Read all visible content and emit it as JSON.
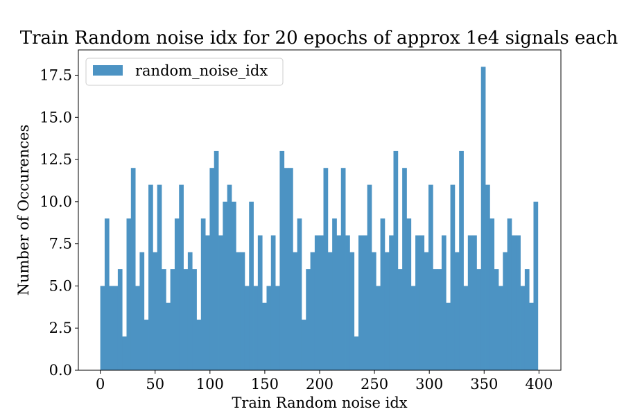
{
  "chart_data": {
    "type": "bar",
    "title": "Train Random noise idx for 20 epochs of approx 1e4 signals each",
    "xlabel": "Train Random noise idx",
    "ylabel": "Number of Occurences",
    "xlim": [
      -20,
      420
    ],
    "ylim": [
      0,
      19
    ],
    "grid": false,
    "legend_position": "top-left",
    "bar_color": "#4c93c3",
    "xticks": [
      0,
      50,
      100,
      150,
      200,
      250,
      300,
      350,
      400
    ],
    "xtick_labels": [
      "0",
      "50",
      "100",
      "150",
      "200",
      "250",
      "300",
      "350",
      "400"
    ],
    "yticks": [
      0,
      2.5,
      5,
      7.5,
      10,
      12.5,
      15,
      17.5
    ],
    "ytick_labels": [
      "0.0",
      "2.5",
      "5.0",
      "7.5",
      "10.0",
      "12.5",
      "15.0",
      "17.5"
    ],
    "bin_start": 0,
    "bin_width": 3.99,
    "series": [
      {
        "name": "random_noise_idx",
        "values": [
          5,
          9,
          5,
          5,
          6,
          2,
          9,
          12,
          5,
          7,
          3,
          11,
          7,
          11,
          6,
          4,
          6,
          9,
          11,
          6,
          7,
          6,
          3,
          9,
          8,
          12,
          13,
          8,
          10,
          11,
          10,
          7,
          7,
          5,
          10,
          5,
          8,
          4,
          5,
          8,
          5,
          13,
          12,
          12,
          7,
          9,
          3,
          6,
          7,
          8,
          8,
          12,
          7,
          9,
          8,
          12,
          8,
          7,
          2,
          8,
          8,
          11,
          7,
          5,
          9,
          7,
          8,
          13,
          6,
          12,
          9,
          5,
          8,
          8,
          7,
          11,
          6,
          6,
          8,
          4,
          11,
          7,
          13,
          5,
          8,
          8,
          6,
          18,
          11,
          9,
          6,
          5,
          7,
          9,
          8,
          8,
          5,
          6,
          4,
          10
        ]
      }
    ]
  }
}
